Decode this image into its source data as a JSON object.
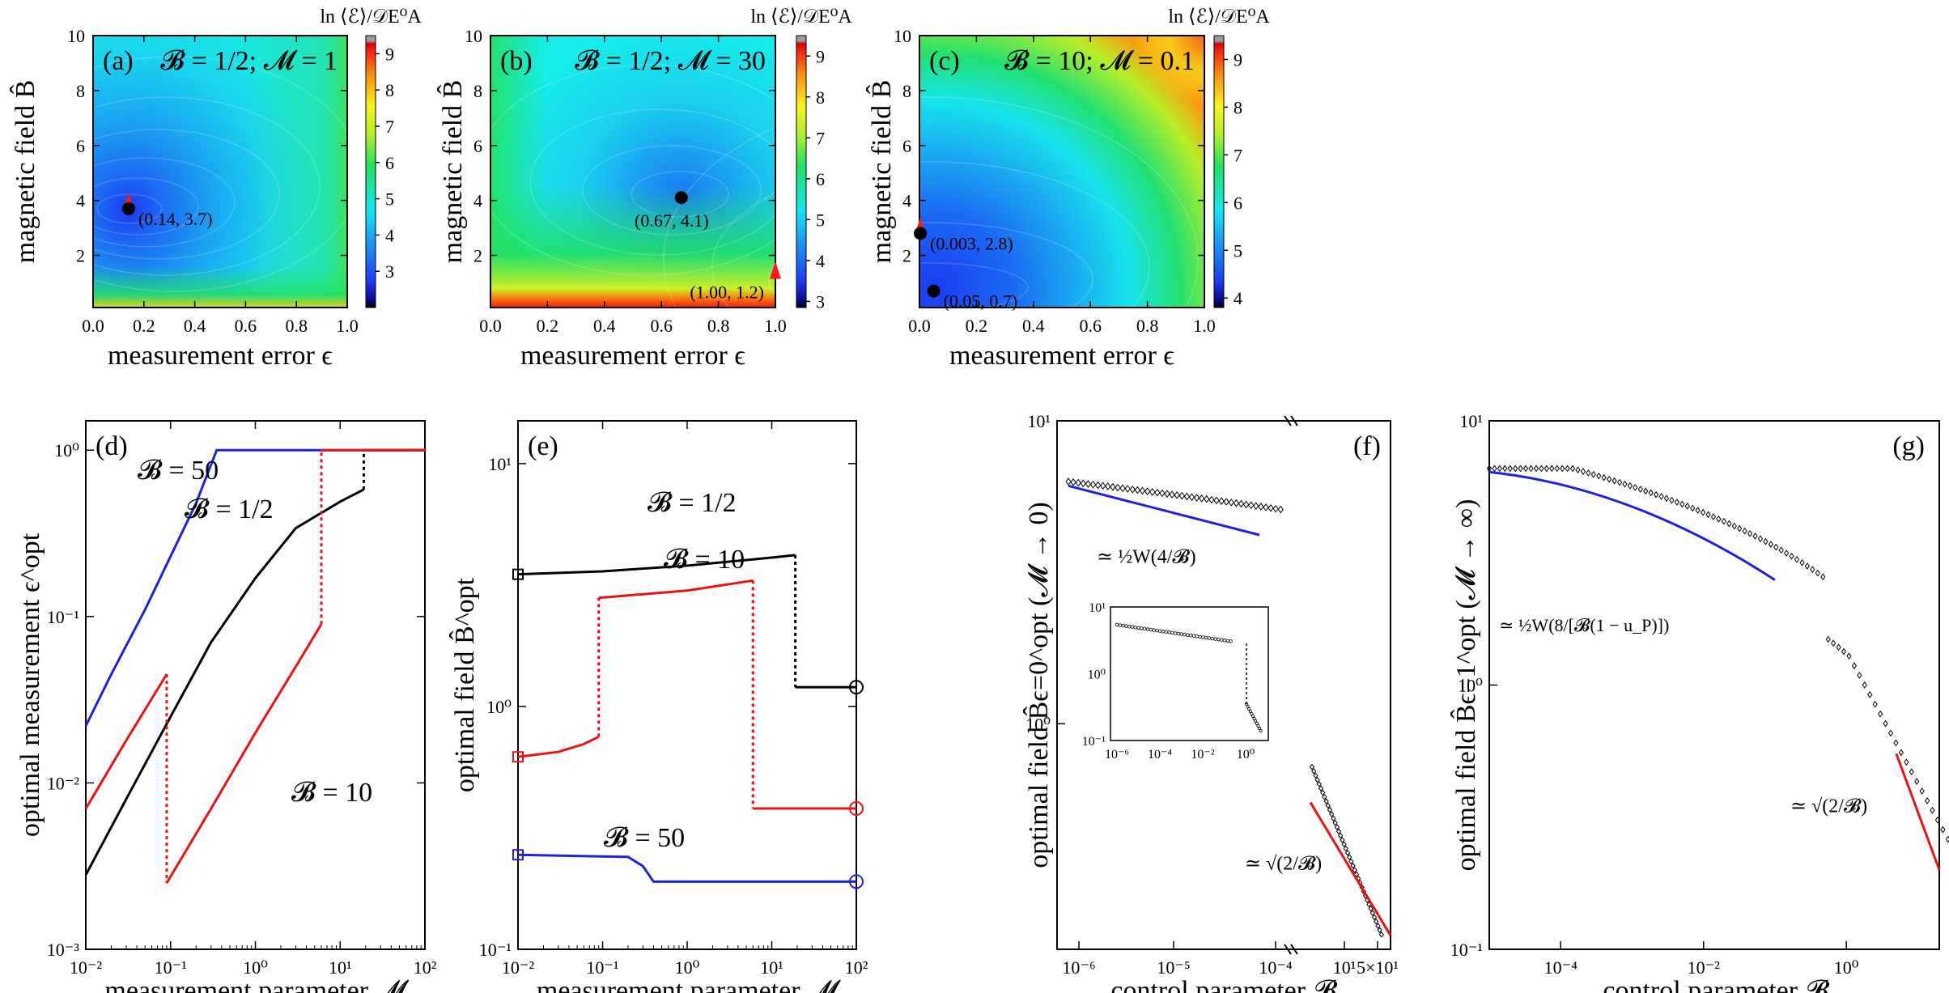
{
  "figure": {
    "colorbar_label": "ln ⟨ℰ⟩/𝒟E⁰A",
    "colors": {
      "black": "#000000",
      "red": "#ee1111",
      "blue": "#1f22dd",
      "marker_red": "#ff1a1a"
    }
  },
  "chart_data": [
    {
      "type": "heatmap",
      "panel": "(a)",
      "annotation": "𝓑 = 1/2;  𝓜 = 1",
      "xlabel": "measurement error ϵ",
      "ylabel": "magnetic field B̂",
      "xticks": [
        "0.0",
        "0.2",
        "0.4",
        "0.6",
        "0.8",
        "1.0"
      ],
      "yticks": [
        "2",
        "4",
        "6",
        "8",
        "10"
      ],
      "xlim": [
        0,
        1
      ],
      "ylim": [
        0.1,
        10
      ],
      "colorbar_ticks": [
        "3",
        "4",
        "5",
        "6",
        "7",
        "8",
        "9"
      ],
      "colorbar_range": [
        2.0,
        9.5
      ],
      "minimum": {
        "x": 0.14,
        "y": 3.7
      },
      "points": [
        {
          "x": 0.14,
          "y": 3.7,
          "marker": "triangle",
          "color": "#ff1a1a",
          "label": "(0.14, 3.7)",
          "label_color": "#ee1111"
        },
        {
          "x": 0.14,
          "y": 3.7,
          "marker": "circle",
          "color": "#000000",
          "label": ""
        }
      ]
    },
    {
      "type": "heatmap",
      "panel": "(b)",
      "annotation": "𝓑 = 1/2;  𝓜 = 30",
      "xlabel": "measurement error ϵ",
      "ylabel": "magnetic field B̂",
      "xticks": [
        "0.0",
        "0.2",
        "0.4",
        "0.6",
        "0.8",
        "1.0"
      ],
      "yticks": [
        "2",
        "4",
        "6",
        "8",
        "10"
      ],
      "xlim": [
        0,
        1
      ],
      "ylim": [
        0.1,
        10
      ],
      "colorbar_ticks": [
        "3",
        "4",
        "5",
        "6",
        "7",
        "8",
        "9"
      ],
      "colorbar_range": [
        2.85,
        9.5
      ],
      "minimum": {
        "x": 0.67,
        "y": 4.1
      },
      "points": [
        {
          "x": 0.67,
          "y": 4.1,
          "marker": "circle",
          "color": "#000000",
          "label": "(0.67, 4.1)",
          "label_color": "#000000"
        },
        {
          "x": 1.0,
          "y": 1.2,
          "marker": "triangle",
          "color": "#ff1a1a",
          "label": "(1.00, 1.2)",
          "label_color": "#ee1111"
        }
      ]
    },
    {
      "type": "heatmap",
      "panel": "(c)",
      "annotation": "𝓑 = 10;  𝓜 = 0.1",
      "xlabel": "measurement error ϵ",
      "ylabel": "magnetic field B̂",
      "xticks": [
        "0.0",
        "0.2",
        "0.4",
        "0.6",
        "0.8",
        "1.0"
      ],
      "yticks": [
        "2",
        "4",
        "6",
        "8",
        "10"
      ],
      "xlim": [
        0,
        1
      ],
      "ylim": [
        0.1,
        10
      ],
      "colorbar_ticks": [
        "4",
        "5",
        "6",
        "7",
        "8",
        "9"
      ],
      "colorbar_range": [
        3.8,
        9.5
      ],
      "minimum": {
        "x": 0.05,
        "y": 0.7
      },
      "points": [
        {
          "x": 0.003,
          "y": 2.8,
          "marker": "triangle",
          "color": "#ff1a1a",
          "label": "(0.003, 2.8)",
          "label_color": "#ee1111"
        },
        {
          "x": 0.003,
          "y": 2.8,
          "marker": "circle",
          "color": "#000000",
          "label": ""
        },
        {
          "x": 0.05,
          "y": 0.7,
          "marker": "circle",
          "color": "#000000",
          "label": "(0.05, 0.7)",
          "label_color": "#000000"
        }
      ]
    },
    {
      "type": "line",
      "panel": "(d)",
      "xlabel": "measurement parameter 𝓜",
      "ylabel": "optimal measurement ϵ^opt",
      "xscale": "log",
      "yscale": "log",
      "xlim": [
        0.01,
        100
      ],
      "ylim": [
        0.001,
        1.5
      ],
      "xticks": [
        "10⁻²",
        "10⁻¹",
        "10⁰",
        "10¹",
        "10²"
      ],
      "yticks": [
        "10⁻³",
        "10⁻²",
        "10⁻¹",
        "10⁰"
      ],
      "series": [
        {
          "name": "𝓑 = 50",
          "color": "#1f22dd",
          "x": [
            0.01,
            0.02,
            0.05,
            0.1,
            0.2,
            0.35,
            1,
            10,
            100
          ],
          "y": [
            0.022,
            0.045,
            0.11,
            0.23,
            0.48,
            1,
            1,
            1,
            1
          ]
        },
        {
          "name": "𝓑 = 1/2",
          "color": "#000000",
          "x": [
            0.01,
            0.03,
            0.1,
            0.3,
            1,
            3,
            10,
            19,
            19,
            100
          ],
          "y": [
            0.0028,
            0.008,
            0.025,
            0.07,
            0.17,
            0.34,
            0.49,
            0.58,
            1,
            1
          ],
          "dashed_jump_at": 19
        },
        {
          "name": "𝓑 = 10",
          "color": "#ee1111",
          "x": [
            0.01,
            0.03,
            0.09,
            0.09,
            0.3,
            1,
            3,
            6,
            6,
            100
          ],
          "y": [
            0.007,
            0.018,
            0.045,
            0.0025,
            0.007,
            0.02,
            0.05,
            0.09,
            1,
            1
          ],
          "dashed_jump_at": [
            0.09,
            6
          ]
        }
      ]
    },
    {
      "type": "line",
      "panel": "(e)",
      "xlabel": "measurement parameter 𝓜",
      "ylabel": "optimal field B̂^opt",
      "xscale": "log",
      "yscale": "log",
      "xlim": [
        0.01,
        100
      ],
      "ylim": [
        0.1,
        15
      ],
      "xticks": [
        "10⁻²",
        "10⁻¹",
        "10⁰",
        "10¹",
        "10²"
      ],
      "yticks": [
        "10⁻¹",
        "10⁰",
        "10¹"
      ],
      "series": [
        {
          "name": "𝓑 = 1/2",
          "color": "#000000",
          "x": [
            0.01,
            0.1,
            1,
            10,
            19,
            19,
            100
          ],
          "y": [
            3.5,
            3.6,
            3.8,
            4.1,
            4.2,
            1.2,
            1.2
          ]
        },
        {
          "name": "𝓑 = 10",
          "color": "#ee1111",
          "x": [
            0.01,
            0.03,
            0.06,
            0.09,
            0.09,
            1,
            6,
            6,
            100
          ],
          "y": [
            0.62,
            0.65,
            0.7,
            0.75,
            2.8,
            3.0,
            3.3,
            0.38,
            0.38
          ]
        },
        {
          "name": "𝓑 = 50",
          "color": "#1f22dd",
          "x": [
            0.01,
            0.2,
            0.3,
            0.4,
            1,
            100
          ],
          "y": [
            0.245,
            0.24,
            0.22,
            0.19,
            0.19,
            0.19
          ]
        }
      ]
    },
    {
      "type": "scatter",
      "panel": "(f)",
      "xlabel": "control parameter 𝓑",
      "ylabel": "optimal field B̂ϵ=0^opt  (𝓜 → 0)",
      "xscale": "log",
      "yscale": "log",
      "ylim": [
        0.18,
        10
      ],
      "xticks": [
        "10⁻⁶",
        "10⁻⁵",
        "10⁻⁴",
        "10¹",
        "5×10¹"
      ],
      "yticks": [
        "10⁰",
        "10¹"
      ],
      "annotations": [
        "≃ ½W(4/𝓑)",
        "≃ √(2/𝓑)"
      ],
      "inset": {
        "xticks": [
          "10⁻⁶",
          "10⁻⁴",
          "10⁻²",
          "10⁰"
        ],
        "yticks": [
          "10⁻¹",
          "10⁰",
          "10¹"
        ]
      }
    },
    {
      "type": "scatter",
      "panel": "(g)",
      "xlabel": "control parameter 𝓑",
      "ylabel": "optimal field B̂ϵ=1^opt  (𝓜 → ∞)",
      "xscale": "log",
      "yscale": "log",
      "xlim": [
        1e-05,
        20
      ],
      "ylim": [
        0.1,
        10
      ],
      "xticks": [
        "10⁻⁴",
        "10⁻²",
        "10⁰"
      ],
      "yticks": [
        "10⁻¹",
        "10⁰",
        "10¹"
      ],
      "annotations": [
        "≃ ½W(8/[𝓑(1 − u_P)])",
        "≃ √(2/𝓑)"
      ]
    }
  ]
}
